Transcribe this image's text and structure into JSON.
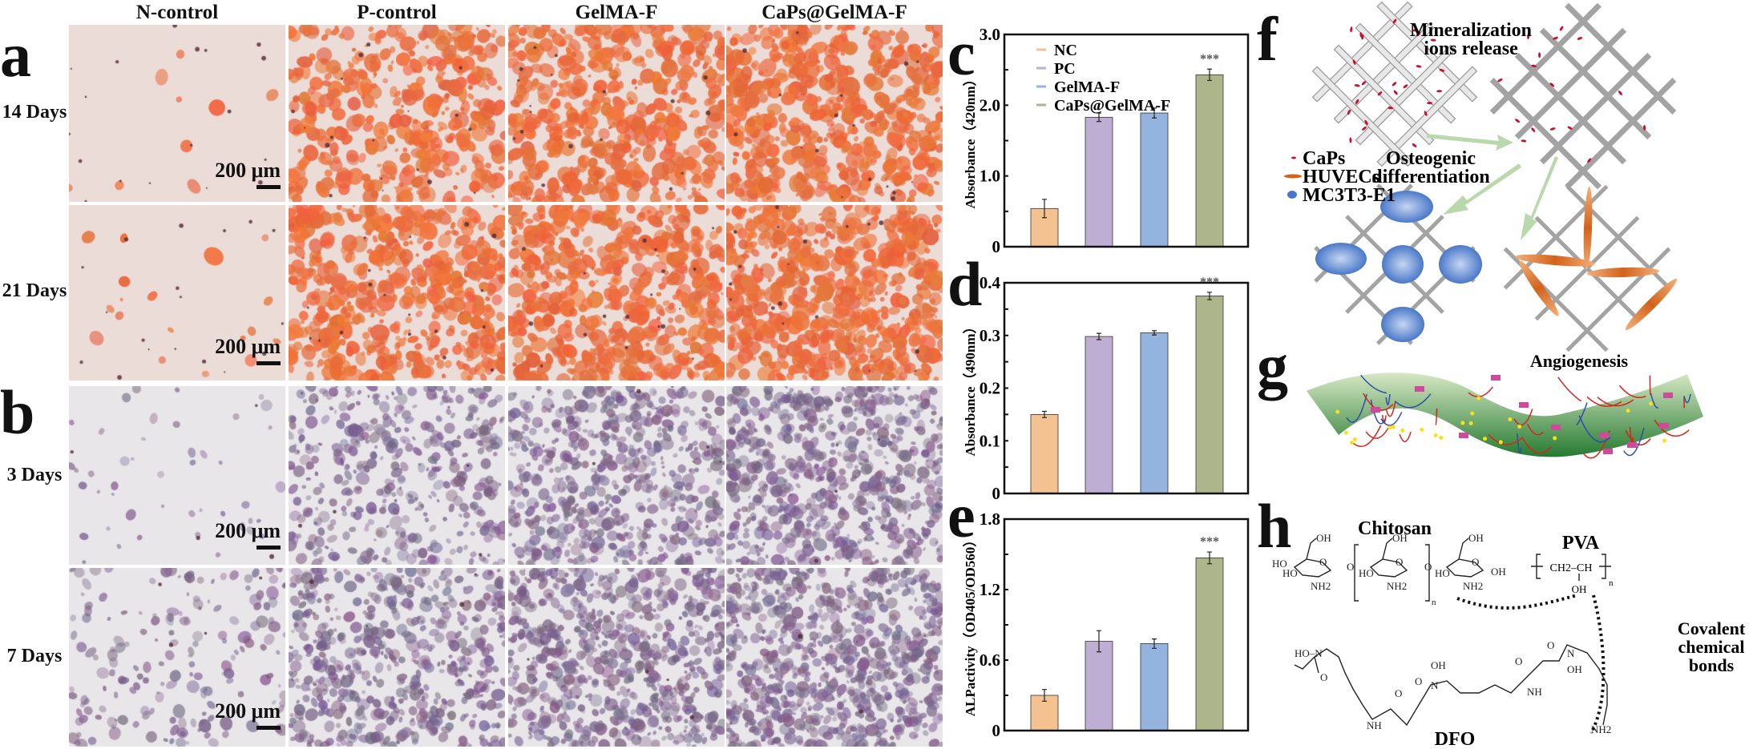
{
  "panel_labels": {
    "a": "a",
    "b": "b",
    "c": "c",
    "d": "d",
    "e": "e",
    "f": "f",
    "g": "g",
    "h": "h"
  },
  "columns": [
    "N-control",
    "P-control",
    "GelMA-F",
    "CaPs@GelMA-F"
  ],
  "rows_a": [
    "14 Days",
    "21 Days"
  ],
  "rows_b": [
    "3 Days",
    "7 Days"
  ],
  "scale_bar": "200 μm",
  "chart_data": [
    {
      "id": "c",
      "type": "bar",
      "categories": [
        "NC",
        "PC",
        "GelMA-F",
        "CaPs@GelMA-F"
      ],
      "values": [
        0.54,
        1.83,
        1.89,
        2.43
      ],
      "errors": [
        0.13,
        0.06,
        0.07,
        0.08
      ],
      "colors": [
        "#f4c291",
        "#bfaed4",
        "#94b3df",
        "#adb68b"
      ],
      "ylabel": "Absorbance（420nm）",
      "ylim": [
        0,
        3.0
      ],
      "yticks": [
        "0",
        "1.0",
        "2.0",
        "3.0"
      ],
      "ytick_values": [
        0,
        1.0,
        2.0,
        3.0
      ],
      "minor_step": 0.5,
      "significance": "***",
      "legend": [
        "NC",
        "PC",
        "GelMA-F",
        "CaPs@GelMA-F"
      ],
      "legend_placement": "top-left"
    },
    {
      "id": "d",
      "type": "bar",
      "categories": [
        "NC",
        "PC",
        "GelMA-F",
        "CaPs@GelMA-F"
      ],
      "values": [
        0.15,
        0.298,
        0.305,
        0.375
      ],
      "errors": [
        0.006,
        0.006,
        0.004,
        0.007
      ],
      "colors": [
        "#f4c291",
        "#bfaed4",
        "#94b3df",
        "#adb68b"
      ],
      "ylabel": "Absorbance（490nm）",
      "ylim": [
        0,
        0.4
      ],
      "yticks": [
        "0",
        "0.1",
        "0.2",
        "0.3",
        "0.4"
      ],
      "ytick_values": [
        0,
        0.1,
        0.2,
        0.3,
        0.4
      ],
      "minor_step": 0.05,
      "significance": "***"
    },
    {
      "id": "e",
      "type": "bar",
      "categories": [
        "NC",
        "PC",
        "GelMA-F",
        "CaPs@GelMA-F"
      ],
      "values": [
        0.3,
        0.76,
        0.74,
        1.47
      ],
      "errors": [
        0.05,
        0.09,
        0.04,
        0.05
      ],
      "colors": [
        "#f4c291",
        "#bfaed4",
        "#94b3df",
        "#adb68b"
      ],
      "ylabel": "ALPactivity（OD405/OD560）",
      "ylim": [
        0,
        1.8
      ],
      "yticks": [
        "0",
        "0.6",
        "1.2",
        "1.8"
      ],
      "ytick_values": [
        0,
        0.6,
        1.2,
        1.8
      ],
      "minor_step": 0.3,
      "significance": "***"
    }
  ],
  "schematic_f": {
    "step1": "Mineralization",
    "step1b": "ions release",
    "step2": "Osteogenic",
    "step2b": "differentiation",
    "step3": "Angiogenesis",
    "legend": [
      "CaPs",
      "HUVECs",
      "MC3T3-E1"
    ]
  },
  "schematic_h": {
    "chitosan": "Chitosan",
    "pva": "PVA",
    "dfo": "DFO",
    "bond1": "Covalent",
    "bond2": "chemical",
    "bond3": "bonds",
    "atoms": {
      "oh": "OH",
      "ho": "HO",
      "nh2": "NH2",
      "n": "n",
      "o": "O",
      "ch2ch": "CH2–CH",
      "nh": "NH",
      "hon": "HO–N",
      "n_atom": "N"
    }
  }
}
